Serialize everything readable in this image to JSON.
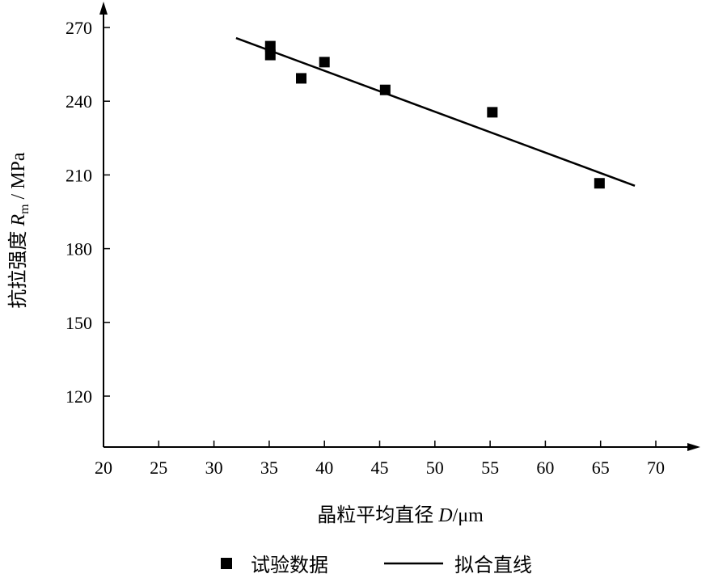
{
  "chart_data": {
    "type": "scatter",
    "title": "",
    "xlabel": "晶粒平均直径 D/μm",
    "xlabel_parts": {
      "prefix": "晶粒平均直径 ",
      "var": "D",
      "unit": "/μm"
    },
    "ylabel": "抗拉强度 Rm / MPa",
    "ylabel_parts": {
      "prefix": "抗拉强度 ",
      "var": "R",
      "sub": "m",
      "unit": " / MPa"
    },
    "xlim": [
      20,
      72
    ],
    "ylim": [
      100,
      278
    ],
    "xticks": [
      20,
      25,
      30,
      35,
      40,
      45,
      50,
      55,
      60,
      65,
      70
    ],
    "yticks": [
      120,
      150,
      180,
      210,
      240,
      270
    ],
    "grid": false,
    "legend_placement": "bottom",
    "series": [
      {
        "name": "试验数据",
        "kind": "scatter",
        "color": "#000000",
        "x": [
          35.1,
          35.1,
          37.9,
          40.0,
          45.5,
          55.2,
          64.9
        ],
        "y": [
          262.4,
          258.8,
          249.3,
          255.9,
          244.6,
          235.5,
          206.6
        ]
      },
      {
        "name": "拟合直线",
        "kind": "line",
        "color": "#000000",
        "x": [
          32.0,
          68.1
        ],
        "y": [
          265.7,
          205.6
        ]
      }
    ]
  }
}
